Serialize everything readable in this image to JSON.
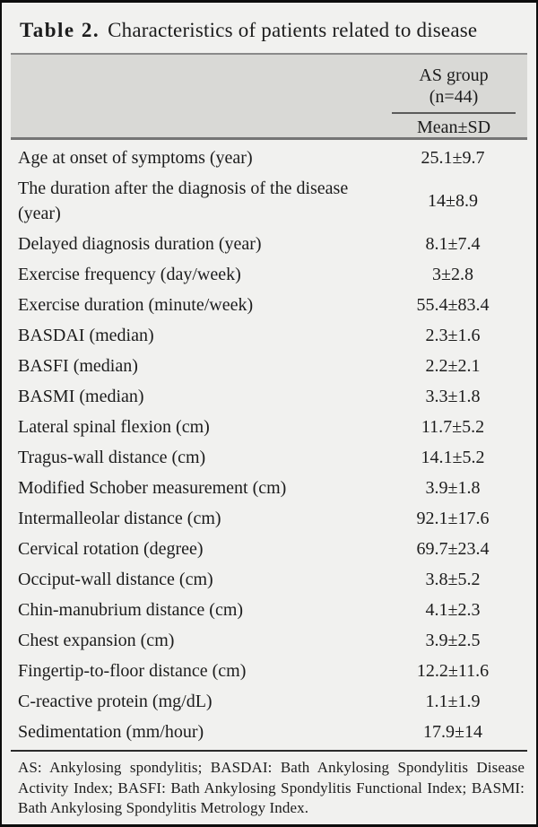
{
  "title": {
    "label": "Table 2.",
    "text": "Characteristics of patients related to disease"
  },
  "header": {
    "group_name": "AS group",
    "group_n": "(n=44)",
    "stat_label": "Mean±SD"
  },
  "table": {
    "rows": [
      {
        "label": "Age at onset of symptoms (year)",
        "value": "25.1±9.7"
      },
      {
        "label": "The duration after the diagnosis of the disease (year)",
        "value": "14±8.9"
      },
      {
        "label": "Delayed diagnosis duration (year)",
        "value": "8.1±7.4"
      },
      {
        "label": "Exercise frequency (day/week)",
        "value": "3±2.8"
      },
      {
        "label": "Exercise duration (minute/week)",
        "value": "55.4±83.4"
      },
      {
        "label": "BASDAI (median)",
        "value": "2.3±1.6"
      },
      {
        "label": "BASFI (median)",
        "value": "2.2±2.1"
      },
      {
        "label": "BASMI (median)",
        "value": "3.3±1.8"
      },
      {
        "label": "Lateral spinal flexion (cm)",
        "value": "11.7±5.2"
      },
      {
        "label": "Tragus-wall distance (cm)",
        "value": "14.1±5.2"
      },
      {
        "label": "Modified Schober measurement (cm)",
        "value": "3.9±1.8"
      },
      {
        "label": "Intermalleolar distance (cm)",
        "value": "92.1±17.6"
      },
      {
        "label": "Cervical rotation (degree)",
        "value": "69.7±23.4"
      },
      {
        "label": "Occiput-wall distance (cm)",
        "value": "3.8±5.2"
      },
      {
        "label": "Chin-manubrium distance (cm)",
        "value": "4.1±2.3"
      },
      {
        "label": "Chest expansion (cm)",
        "value": "3.9±2.5"
      },
      {
        "label": "Fingertip-to-floor distance (cm)",
        "value": "12.2±11.6"
      },
      {
        "label": "C-reactive protein (mg/dL)",
        "value": "1.1±1.9"
      },
      {
        "label": "Sedimentation (mm/hour)",
        "value": "17.9±14"
      }
    ]
  },
  "footnote": "AS: Ankylosing spondylitis; BASDAI: Bath Ankylosing Spondylitis Disease Activity Index; BASFI: Bath Ankylosing Spondylitis Functional Index; BASMI: Bath Ankylosing Spondylitis Metrology Index.",
  "colors": {
    "page_background": "#f1f1ef",
    "header_band": "#d9d9d6",
    "outer_border": "#0d0d0d",
    "gray_rule": "#8a8a8a",
    "dark_rule": "#2b2b2b",
    "text": "#1c1c1c"
  }
}
